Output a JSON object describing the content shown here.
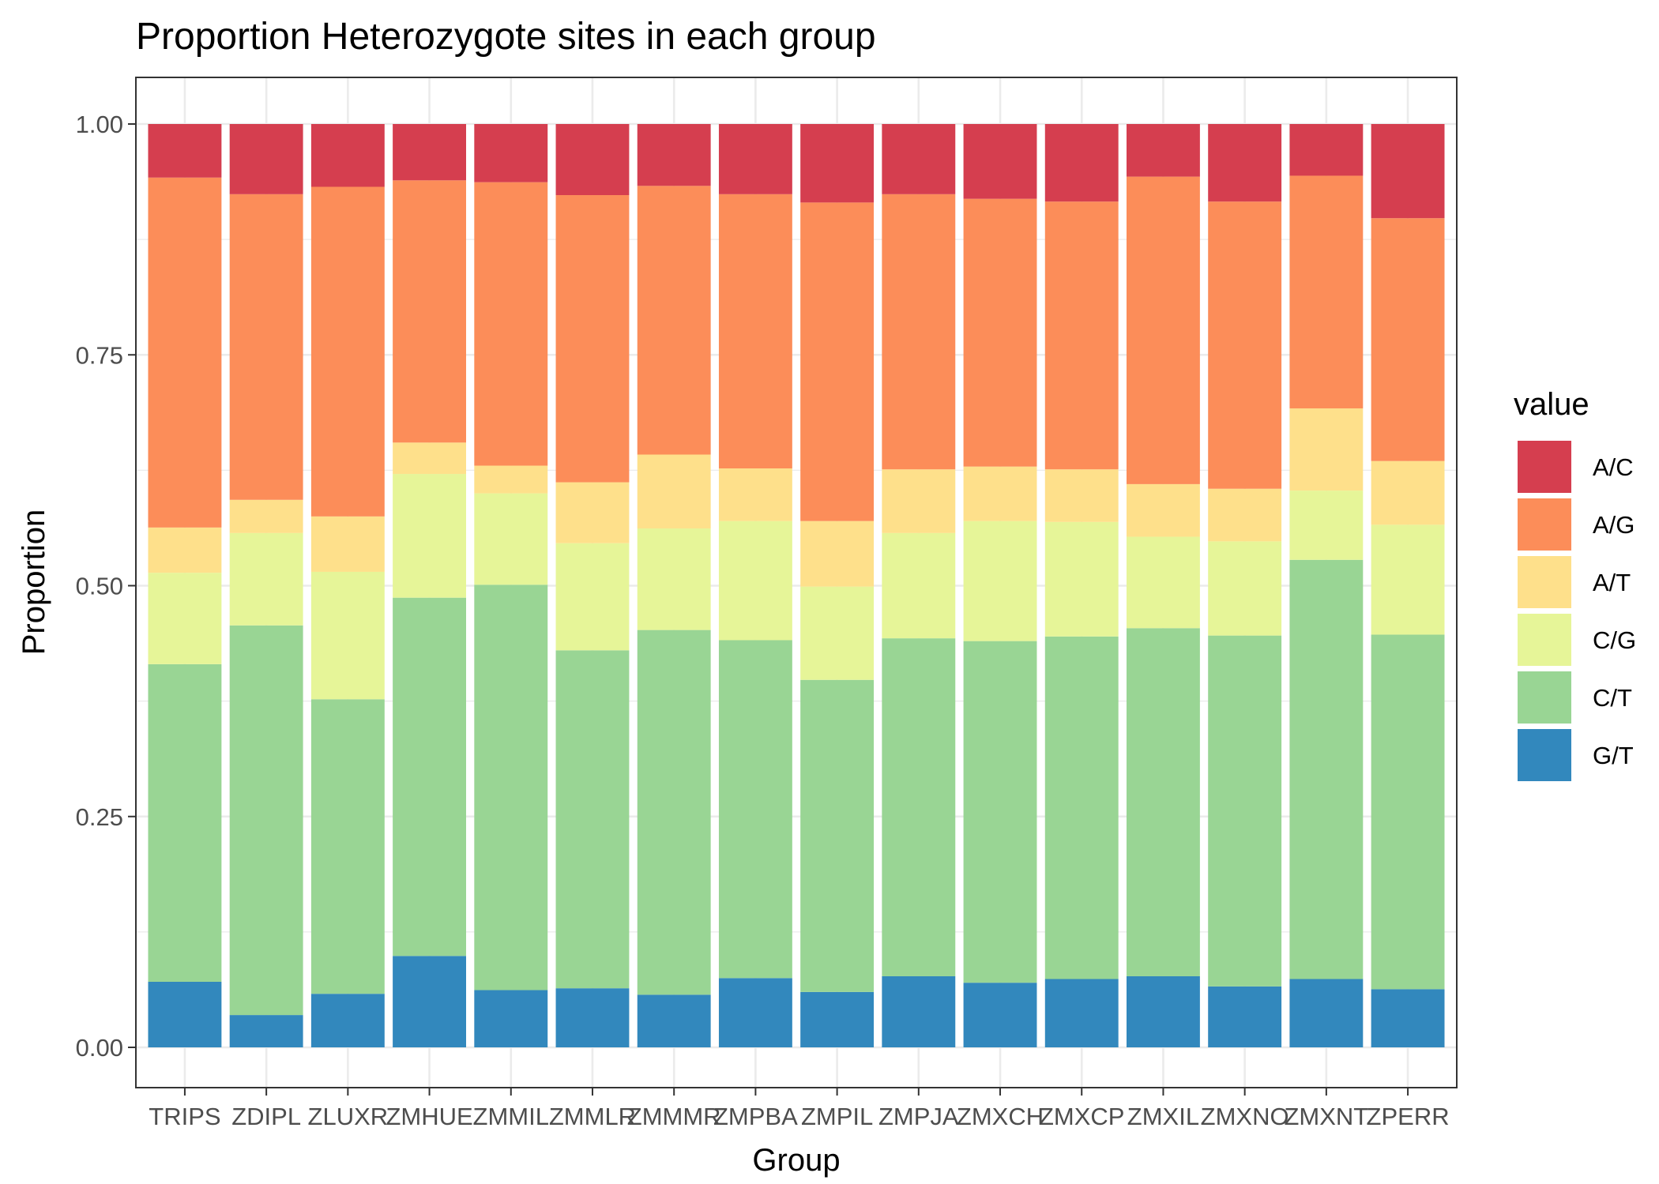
{
  "chart_data": {
    "type": "bar",
    "stacked": true,
    "title": "Proportion Heterozygote sites in each group",
    "xlabel": "Group",
    "ylabel": "Proportion",
    "ylim": [
      0,
      1
    ],
    "yticks": [
      "0.00",
      "0.25",
      "0.50",
      "0.75",
      "1.00"
    ],
    "ytick_values": [
      0,
      0.25,
      0.5,
      0.75,
      1.0
    ],
    "grid": true,
    "legend": {
      "title": "value",
      "position": "right"
    },
    "categories": [
      "TRIPS",
      "ZDIPL",
      "ZLUXR",
      "ZMHUE",
      "ZMMIL",
      "ZMMLR",
      "ZMMMR",
      "ZMPBA",
      "ZMPIL",
      "ZMPJA",
      "ZMXCH",
      "ZMXCP",
      "ZMXIL",
      "ZMXNO",
      "ZMXNT",
      "ZPERR"
    ],
    "series": [
      {
        "name": "G/T",
        "color": "#3288bd",
        "values": [
          0.071,
          0.035,
          0.058,
          0.099,
          0.062,
          0.064,
          0.057,
          0.075,
          0.06,
          0.077,
          0.07,
          0.074,
          0.077,
          0.066,
          0.074,
          0.063
        ]
      },
      {
        "name": "C/T",
        "color": "#99d594",
        "values": [
          0.344,
          0.422,
          0.319,
          0.388,
          0.439,
          0.366,
          0.395,
          0.366,
          0.338,
          0.366,
          0.37,
          0.371,
          0.377,
          0.38,
          0.454,
          0.384
        ]
      },
      {
        "name": "C/G",
        "color": "#e6f598",
        "values": [
          0.099,
          0.1,
          0.138,
          0.134,
          0.099,
          0.116,
          0.11,
          0.129,
          0.101,
          0.114,
          0.13,
          0.124,
          0.099,
          0.102,
          0.075,
          0.119
        ]
      },
      {
        "name": "A/T",
        "color": "#fee08b",
        "values": [
          0.049,
          0.036,
          0.06,
          0.034,
          0.03,
          0.066,
          0.08,
          0.057,
          0.071,
          0.069,
          0.059,
          0.057,
          0.057,
          0.057,
          0.089,
          0.069
        ]
      },
      {
        "name": "A/G",
        "color": "#fc8d59",
        "values": [
          0.379,
          0.331,
          0.357,
          0.284,
          0.307,
          0.311,
          0.291,
          0.297,
          0.345,
          0.298,
          0.29,
          0.29,
          0.333,
          0.311,
          0.252,
          0.263
        ]
      },
      {
        "name": "A/C",
        "color": "#d53e4f",
        "values": [
          0.058,
          0.076,
          0.068,
          0.061,
          0.063,
          0.077,
          0.067,
          0.076,
          0.085,
          0.076,
          0.081,
          0.084,
          0.057,
          0.084,
          0.056,
          0.102
        ]
      }
    ]
  }
}
